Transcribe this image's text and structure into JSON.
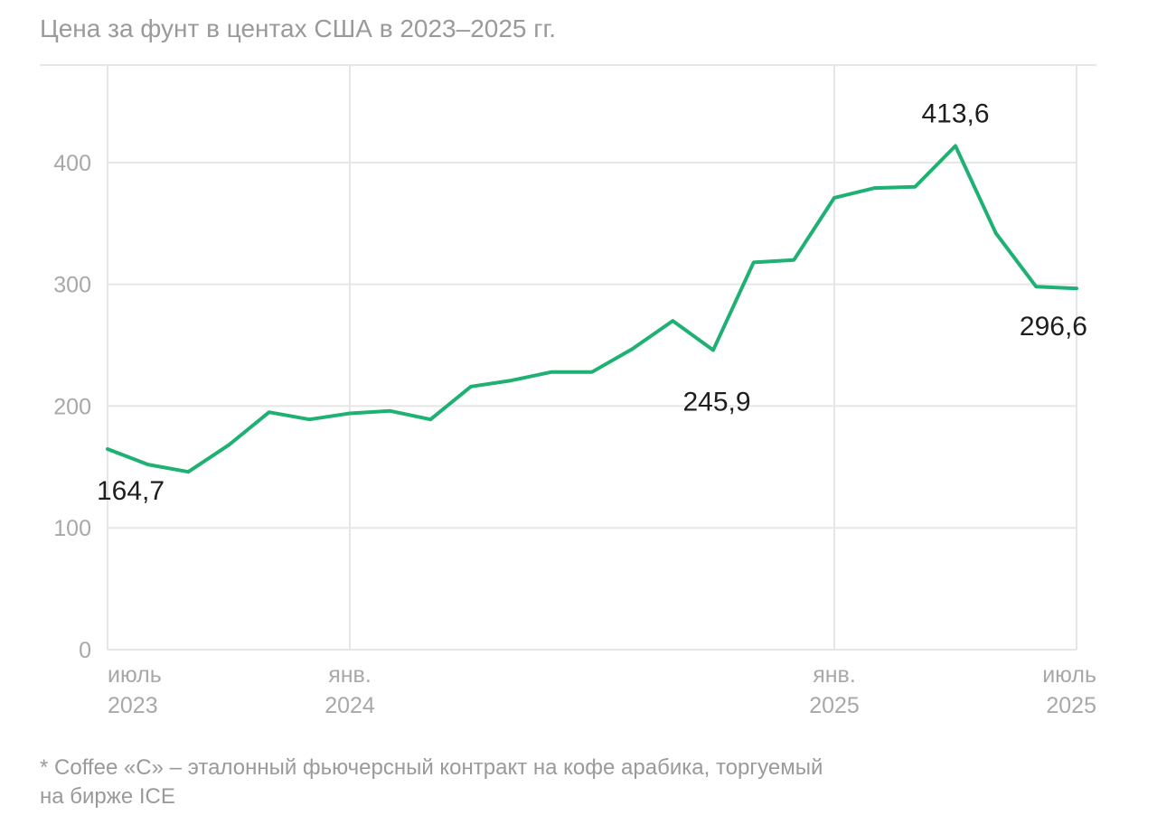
{
  "chart_data": {
    "type": "line",
    "title": "Цена за фунт в центах США в 2023–2025 гг.",
    "footnote": [
      "* Coffee «C» – эталонный фьючерсный контракт на кофе арабика, торгуемый",
      "на бирже ICE"
    ],
    "ylim": [
      0,
      480
    ],
    "yticks": [
      0,
      100,
      200,
      300,
      400
    ],
    "ytick_labels": [
      "0",
      "100",
      "200",
      "300",
      "400"
    ],
    "grid": true,
    "xlim": [
      0,
      24
    ],
    "xticks": [
      {
        "x": 0,
        "line1": "июль",
        "line2": "2023"
      },
      {
        "x": 6,
        "line1": "янв.",
        "line2": "2024"
      },
      {
        "x": 18,
        "line1": "янв.",
        "line2": "2025"
      },
      {
        "x": 24,
        "line1": "июль",
        "line2": "2025"
      }
    ],
    "series": [
      {
        "name": "Coffee «C»",
        "color": "#1fb173",
        "x": [
          0,
          1,
          2,
          3,
          4,
          5,
          6,
          7,
          8,
          9,
          10,
          11,
          12,
          13,
          14,
          15,
          16,
          17,
          18,
          19,
          20,
          21,
          22,
          23,
          24
        ],
        "values": [
          164.7,
          152,
          146,
          168,
          195,
          189,
          194,
          196,
          189,
          216,
          221,
          228,
          228,
          247,
          270,
          245.9,
          318,
          320,
          371,
          379,
          380,
          413.6,
          342,
          298,
          296.6
        ]
      }
    ],
    "annotations": [
      {
        "text": "164,7",
        "x": 0,
        "y": 164.7
      },
      {
        "text": "245,9",
        "x": 15,
        "y": 245.9
      },
      {
        "text": "413,6",
        "x": 21,
        "y": 413.6
      },
      {
        "text": "296,6",
        "x": 24,
        "y": 296.6
      }
    ]
  }
}
